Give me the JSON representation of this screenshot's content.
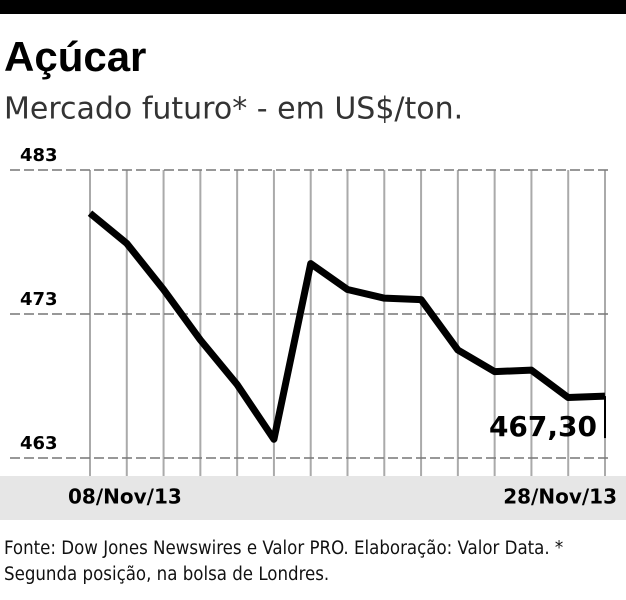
{
  "chart_data": {
    "type": "line",
    "title": "Açúcar",
    "subtitle": "Mercado futuro* - em US$/ton.",
    "categories": [
      "08/Nov/13",
      null,
      null,
      null,
      null,
      null,
      null,
      null,
      null,
      null,
      null,
      null,
      null,
      null,
      "28/Nov/13"
    ],
    "values": [
      480.0,
      477.9,
      474.7,
      471.2,
      468.1,
      464.3,
      476.5,
      474.7,
      474.1,
      474.0,
      470.5,
      469.0,
      469.1,
      467.2,
      467.3
    ],
    "value_labels": [
      null,
      null,
      null,
      null,
      null,
      null,
      null,
      null,
      null,
      null,
      null,
      null,
      null,
      null,
      "467,30"
    ],
    "color": "#000000",
    "ylim": [
      463,
      483
    ],
    "yticks": [
      463,
      473,
      483
    ],
    "grid": true,
    "footnote": "Fonte: Dow Jones Newswires e Valor PRO. Elaboração: Valor Data. * Segunda posição, na bolsa de Londres."
  }
}
